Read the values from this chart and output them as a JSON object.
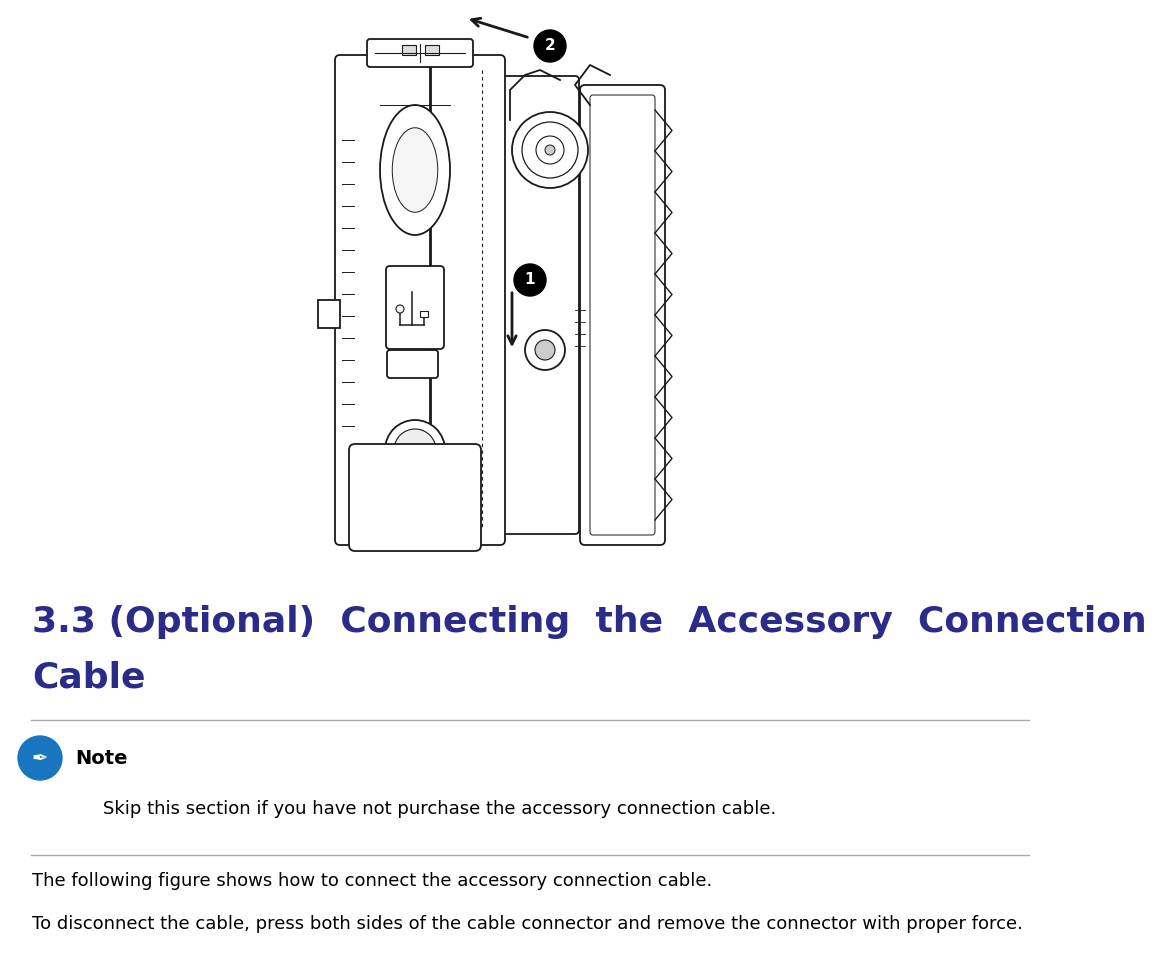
{
  "title_line1": "3.3 (Optional)  Connecting  the  Accessory  Connection",
  "title_line2": "Cable",
  "title_color": "#2b2b8a",
  "title_fontsize": 26,
  "note_label": "Note",
  "note_text": "    Skip this section if you have not purchase the accessory connection cable.",
  "body_text1": "The following figure shows how to connect the accessory connection cable.",
  "body_text2": "To disconnect the cable, press both sides of the cable connector and remove the connector with proper force.",
  "body_fontsize": 13,
  "note_fontsize": 13,
  "note_bold_fontsize": 14,
  "bg_color": "#ffffff",
  "text_color": "#000000",
  "hr_color": "#aaaaaa",
  "note_icon_color": "#1a75c0",
  "lc": "#1a1a1a"
}
